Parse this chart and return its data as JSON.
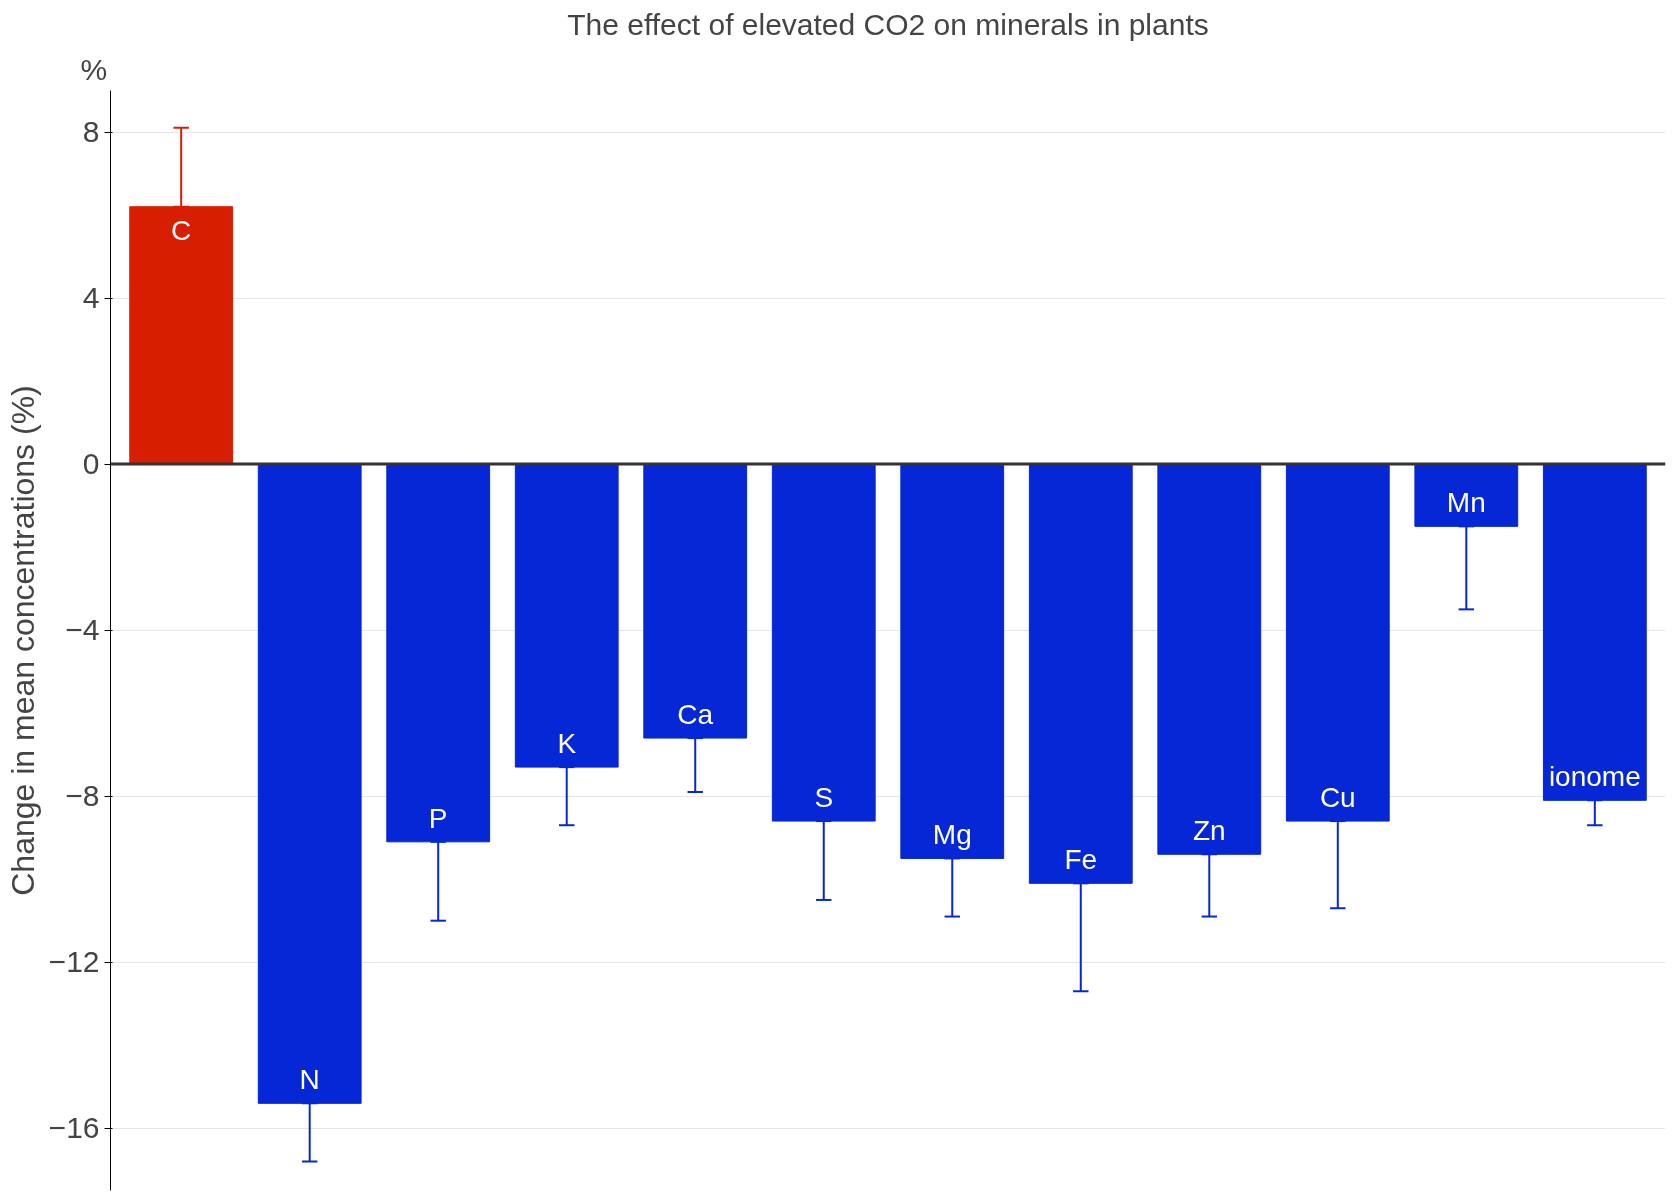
{
  "chart_data": {
    "type": "bar",
    "title": "The effect of elevated CO2 on minerals in plants",
    "ylabel": "Change in mean concentrations (%)",
    "annotations": [
      "%"
    ],
    "categories": [
      "C",
      "N",
      "P",
      "K",
      "Ca",
      "S",
      "Mg",
      "Fe",
      "Zn",
      "Cu",
      "Mn",
      "ionome"
    ],
    "values": [
      6.2,
      -15.4,
      -9.1,
      -7.3,
      -6.6,
      -8.6,
      -9.5,
      -10.1,
      -9.4,
      -8.6,
      -1.5,
      -8.1
    ],
    "colors": [
      "#d81e00",
      "#0527d6",
      "#0527d6",
      "#0527d6",
      "#0527d6",
      "#0527d6",
      "#0527d6",
      "#0527d6",
      "#0527d6",
      "#0527d6",
      "#0527d6",
      "#0527d6"
    ],
    "errors": [
      [
        6.2,
        8.1
      ],
      [
        -16.8,
        -15.4
      ],
      [
        -11.0,
        -9.1
      ],
      [
        -8.7,
        -7.3
      ],
      [
        -7.9,
        -6.6
      ],
      [
        -10.5,
        -8.6
      ],
      [
        -10.9,
        -9.5
      ],
      [
        -12.7,
        -10.1
      ],
      [
        -10.9,
        -9.4
      ],
      [
        -10.7,
        -8.6
      ],
      [
        -3.5,
        -1.5
      ],
      [
        -8.7,
        -8.1
      ]
    ],
    "ylim": [
      -17.5,
      9
    ],
    "yticks": [
      -16,
      -12,
      -8,
      -4,
      0,
      4,
      8
    ],
    "grid": "y",
    "ref_lines": [
      {
        "axis": "y",
        "value": 0,
        "color": "#333333"
      }
    ]
  }
}
